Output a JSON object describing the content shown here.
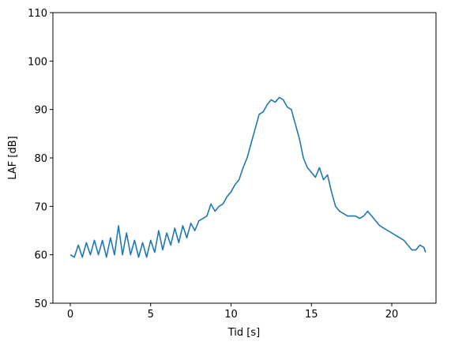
{
  "chart_data": {
    "type": "line",
    "xlabel": "Tid [s]",
    "ylabel": "LAF [dB]",
    "x": [
      0,
      0.25,
      0.5,
      0.75,
      1,
      1.25,
      1.5,
      1.75,
      2,
      2.25,
      2.5,
      2.75,
      3,
      3.25,
      3.5,
      3.75,
      4,
      4.25,
      4.5,
      4.75,
      5,
      5.25,
      5.5,
      5.75,
      6,
      6.25,
      6.5,
      6.75,
      7,
      7.25,
      7.5,
      7.75,
      8,
      8.25,
      8.5,
      8.75,
      9,
      9.25,
      9.5,
      9.75,
      10,
      10.25,
      10.5,
      10.75,
      11,
      11.25,
      11.5,
      11.75,
      12,
      12.25,
      12.5,
      12.75,
      13,
      13.25,
      13.5,
      13.75,
      14,
      14.25,
      14.5,
      14.75,
      15,
      15.25,
      15.5,
      15.75,
      16,
      16.25,
      16.5,
      16.75,
      17,
      17.25,
      17.5,
      17.75,
      18,
      18.25,
      18.5,
      18.75,
      19,
      19.25,
      19.5,
      19.75,
      20,
      20.25,
      20.5,
      20.75,
      21,
      21.25,
      21.5,
      21.75,
      22,
      22.1
    ],
    "series": [
      {
        "color": "#1f77b4",
        "values": [
          60,
          59.5,
          62,
          59.5,
          62.5,
          60,
          63,
          60,
          63,
          59.5,
          63.5,
          60,
          66,
          60,
          64.5,
          60,
          63,
          59.5,
          62.5,
          59.5,
          63,
          60.5,
          65,
          61,
          64.5,
          62,
          65.5,
          62.5,
          66,
          63.5,
          66.5,
          65,
          67,
          67.5,
          68,
          70.5,
          69,
          70,
          70.5,
          72,
          73,
          74.5,
          75.5,
          78,
          80,
          83,
          86,
          89,
          89.5,
          91,
          92,
          91.5,
          92.5,
          92,
          90.5,
          90,
          87,
          84,
          80,
          78,
          77,
          76,
          78,
          75.5,
          76.5,
          73,
          70,
          69,
          68.5,
          68,
          68,
          68,
          67.5,
          68,
          69,
          68,
          67,
          66,
          65.5,
          65,
          64.5,
          64,
          63.5,
          63,
          62,
          61,
          61,
          62,
          61.5,
          60.5
        ]
      }
    ],
    "xlim": [
      -1.08,
      22.75
    ],
    "ylim": [
      50,
      110
    ],
    "xticks": [
      0,
      5,
      10,
      15,
      20
    ],
    "yticks": [
      50,
      60,
      70,
      80,
      90,
      100,
      110
    ]
  }
}
